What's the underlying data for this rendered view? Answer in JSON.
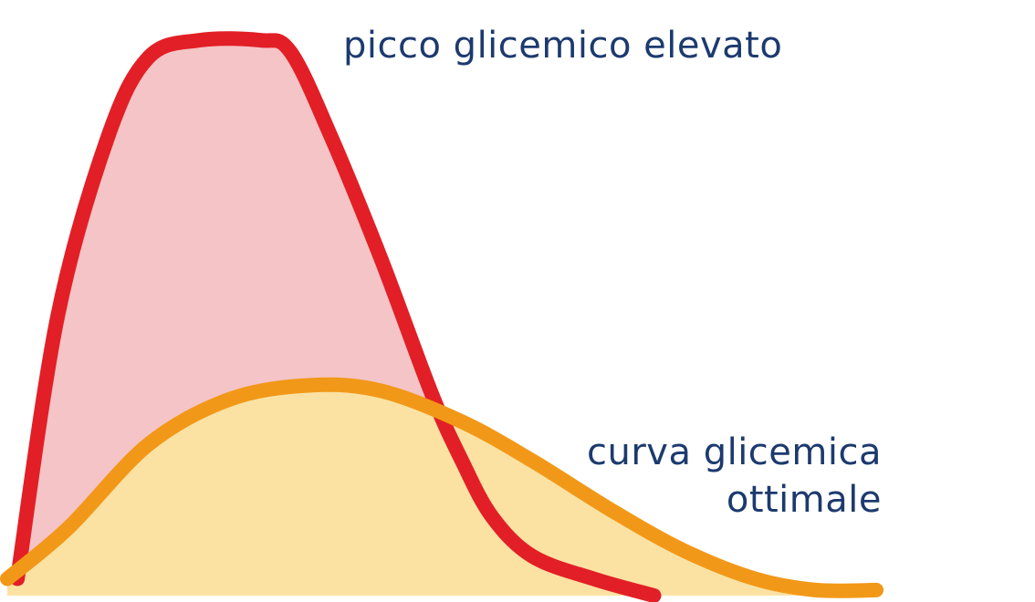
{
  "chart_data": {
    "type": "area",
    "title": "",
    "xlabel": "",
    "ylabel": "",
    "xlim": [
      0,
      100
    ],
    "ylim": [
      0,
      100
    ],
    "grid": false,
    "legend": "none",
    "series": [
      {
        "key": "peak",
        "label": "picco glicemico elevato",
        "line_color": "#e21f26",
        "fill_color": "#f4c4c6",
        "points": [
          [
            1,
            3
          ],
          [
            5,
            50
          ],
          [
            10,
            82
          ],
          [
            14,
            96
          ],
          [
            19,
            99
          ],
          [
            25,
            99
          ],
          [
            28,
            97
          ],
          [
            32,
            82
          ],
          [
            37,
            60
          ],
          [
            42,
            36
          ],
          [
            45,
            24
          ],
          [
            48,
            14
          ],
          [
            52,
            7
          ],
          [
            58,
            3
          ],
          [
            64,
            0
          ]
        ]
      },
      {
        "key": "optimal",
        "label_lines": [
          "curva glicemica",
          "ottimale"
        ],
        "line_color": "#f29818",
        "fill_color": "#fbe2a3",
        "points": [
          [
            0,
            3
          ],
          [
            6,
            12
          ],
          [
            14,
            27
          ],
          [
            22,
            35
          ],
          [
            30,
            37.5
          ],
          [
            37,
            36.5
          ],
          [
            45,
            31
          ],
          [
            52,
            24
          ],
          [
            60,
            15
          ],
          [
            67,
            8
          ],
          [
            74,
            3
          ],
          [
            80,
            1
          ],
          [
            86,
            1
          ]
        ]
      }
    ]
  }
}
